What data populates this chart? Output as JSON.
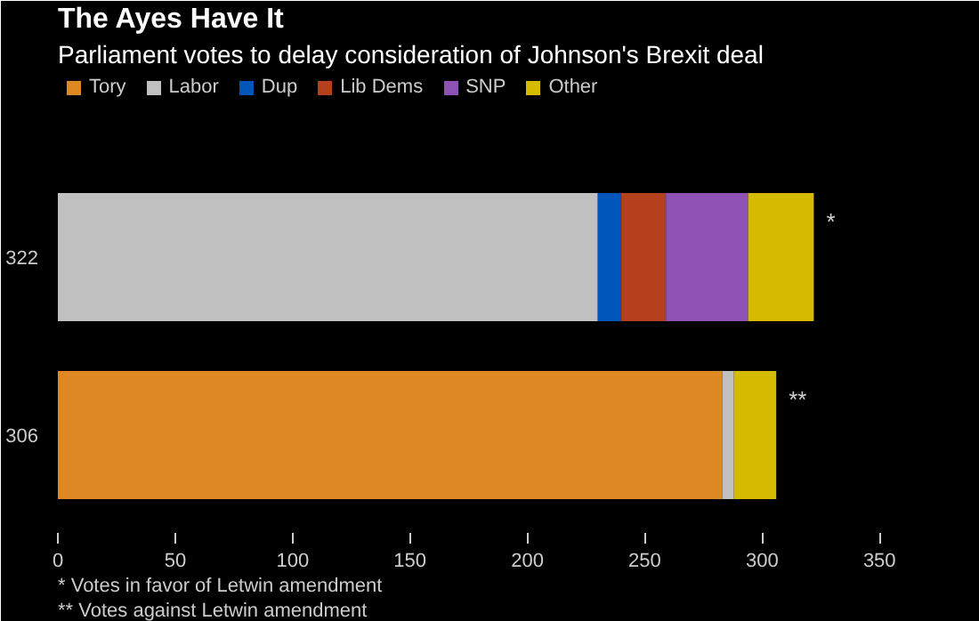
{
  "chart_data": {
    "type": "bar",
    "orientation": "horizontal",
    "stacked": true,
    "title": "The Ayes Have It",
    "subtitle": "Parliament votes to delay consideration of Johnson's Brexit deal",
    "categories": [
      "322",
      "306"
    ],
    "series": [
      {
        "name": "Tory",
        "color": "#dd8822",
        "values": [
          0,
          283
        ]
      },
      {
        "name": "Labor",
        "color": "#c0c0c0",
        "values": [
          230,
          5
        ]
      },
      {
        "name": "Dup",
        "color": "#0055bb",
        "values": [
          10,
          0
        ]
      },
      {
        "name": "Lib Dems",
        "color": "#b5401e",
        "values": [
          19,
          0
        ]
      },
      {
        "name": "SNP",
        "color": "#8e52b5",
        "values": [
          35,
          0
        ]
      },
      {
        "name": "Other",
        "color": "#d4bb00",
        "values": [
          28,
          18
        ]
      }
    ],
    "xlim": [
      0,
      370
    ],
    "xticks": [
      0,
      50,
      100,
      150,
      200,
      250,
      300,
      350
    ],
    "grid": false,
    "legend": "top left",
    "annotations": [
      {
        "text": "*",
        "x": 322,
        "y": "322"
      },
      {
        "text": "**",
        "x": 306,
        "y": "306"
      },
      "* Votes in favor of Letwin amendment",
      "** Votes against Letwin amendment"
    ]
  }
}
